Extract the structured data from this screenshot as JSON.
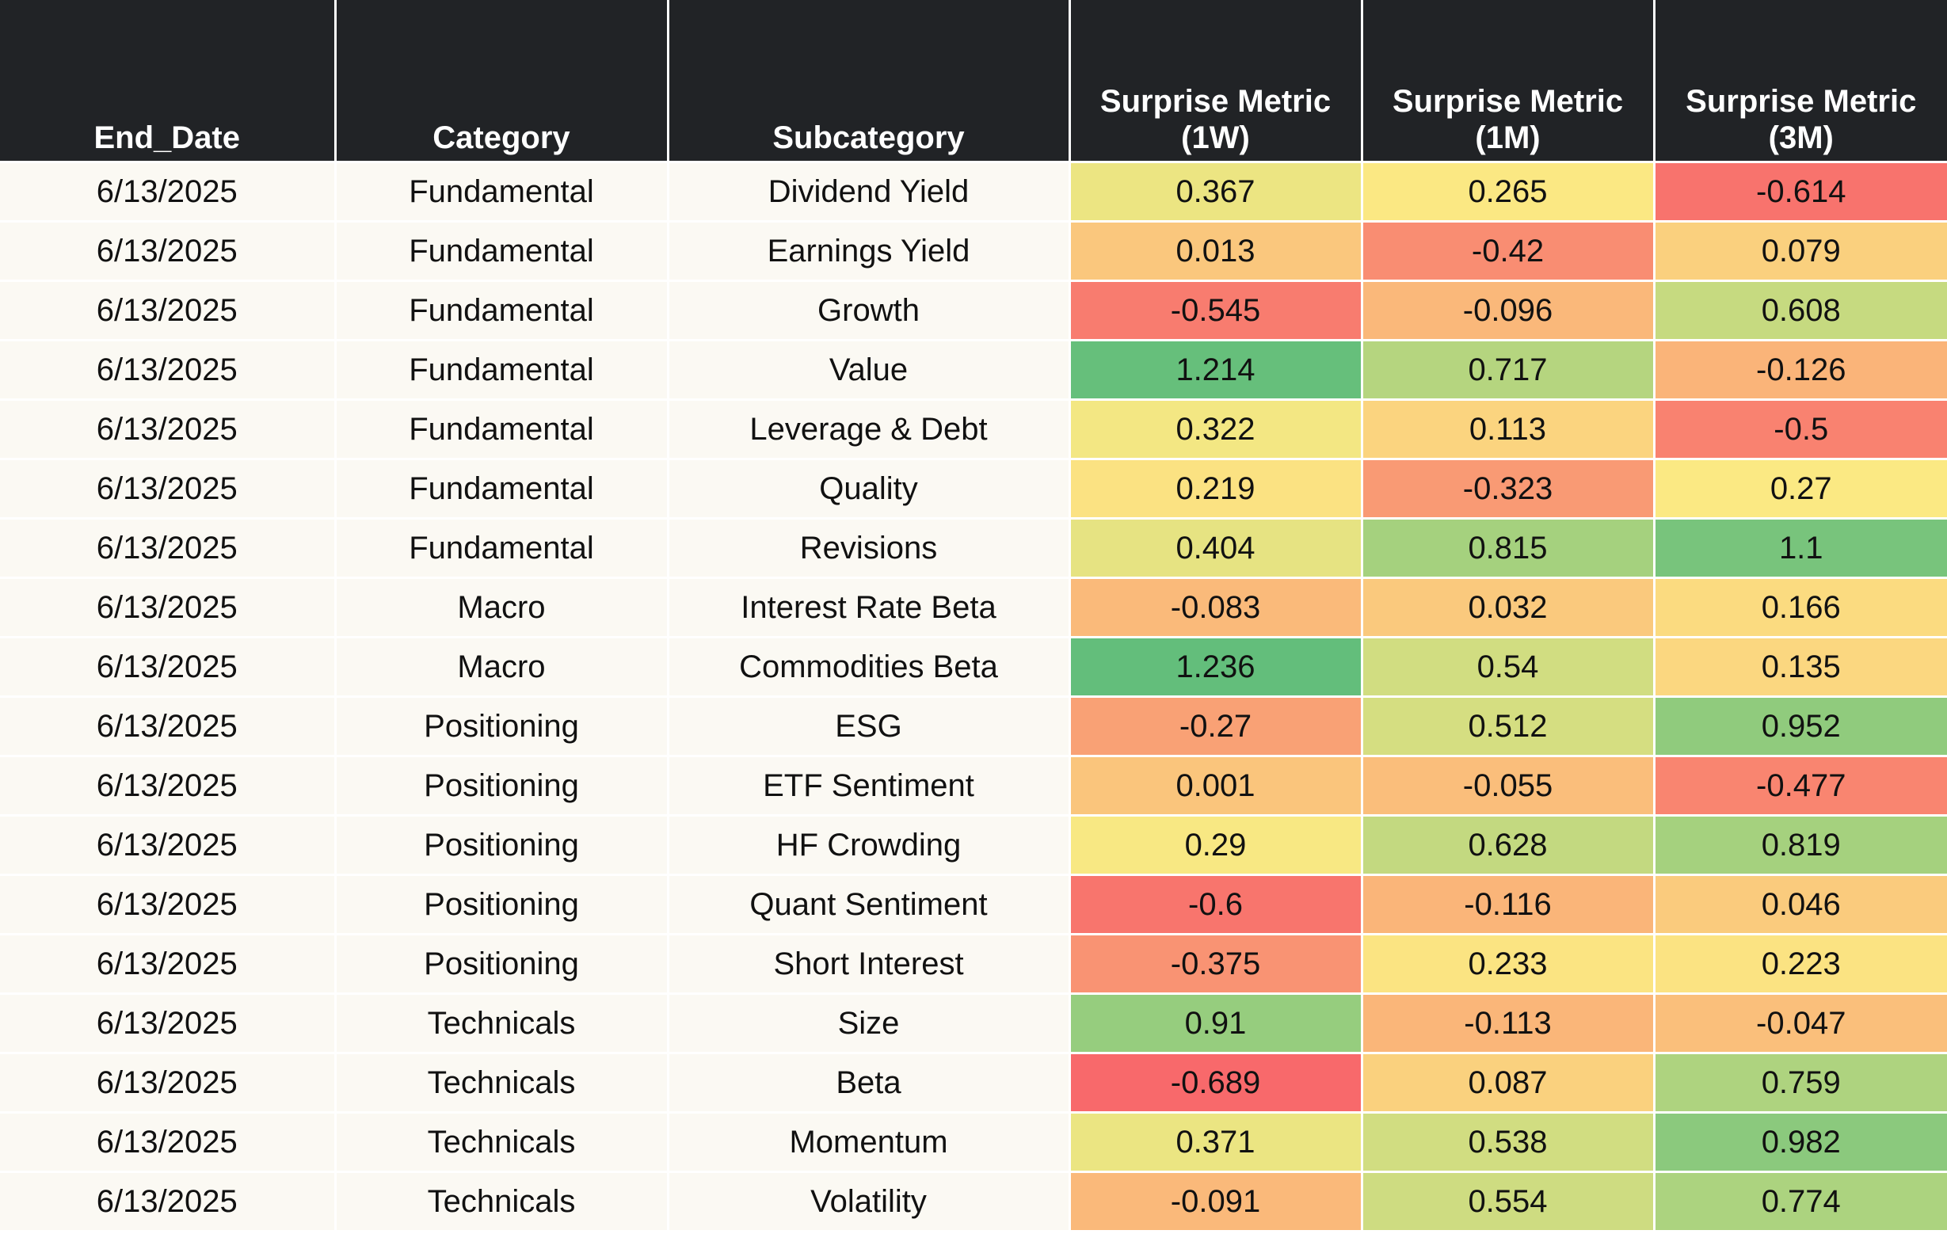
{
  "chart_data": {
    "type": "table",
    "columns": [
      "End_Date",
      "Category",
      "Subcategory",
      "Surprise Metric (1W)",
      "Surprise Metric (1M)",
      "Surprise Metric (3M)"
    ],
    "rows": [
      [
        "6/13/2025",
        "Fundamental",
        "Dividend Yield",
        "0.367",
        "0.265",
        "-0.614"
      ],
      [
        "6/13/2025",
        "Fundamental",
        "Earnings Yield",
        "0.013",
        "-0.42",
        "0.079"
      ],
      [
        "6/13/2025",
        "Fundamental",
        "Growth",
        "-0.545",
        "-0.096",
        "0.608"
      ],
      [
        "6/13/2025",
        "Fundamental",
        "Value",
        "1.214",
        "0.717",
        "-0.126"
      ],
      [
        "6/13/2025",
        "Fundamental",
        "Leverage & Debt",
        "0.322",
        "0.113",
        "-0.5"
      ],
      [
        "6/13/2025",
        "Fundamental",
        "Quality",
        "0.219",
        "-0.323",
        "0.27"
      ],
      [
        "6/13/2025",
        "Fundamental",
        "Revisions",
        "0.404",
        "0.815",
        "1.1"
      ],
      [
        "6/13/2025",
        "Macro",
        "Interest Rate Beta",
        "-0.083",
        "0.032",
        "0.166"
      ],
      [
        "6/13/2025",
        "Macro",
        "Commodities Beta",
        "1.236",
        "0.54",
        "0.135"
      ],
      [
        "6/13/2025",
        "Positioning",
        "ESG",
        "-0.27",
        "0.512",
        "0.952"
      ],
      [
        "6/13/2025",
        "Positioning",
        "ETF Sentiment",
        "0.001",
        "-0.055",
        "-0.477"
      ],
      [
        "6/13/2025",
        "Positioning",
        "HF Crowding",
        "0.29",
        "0.628",
        "0.819"
      ],
      [
        "6/13/2025",
        "Positioning",
        "Quant Sentiment",
        "-0.6",
        "-0.116",
        "0.046"
      ],
      [
        "6/13/2025",
        "Positioning",
        "Short Interest",
        "-0.375",
        "0.233",
        "0.223"
      ],
      [
        "6/13/2025",
        "Technicals",
        "Size",
        "0.91",
        "-0.113",
        "-0.047"
      ],
      [
        "6/13/2025",
        "Technicals",
        "Beta",
        "-0.689",
        "0.087",
        "0.759"
      ],
      [
        "6/13/2025",
        "Technicals",
        "Momentum",
        "0.371",
        "0.538",
        "0.982"
      ],
      [
        "6/13/2025",
        "Technicals",
        "Volatility",
        "-0.091",
        "0.554",
        "0.774"
      ]
    ],
    "color_scale": {
      "min": -0.689,
      "mid": 0.27,
      "max": 1.236,
      "stops": [
        {
          "t": 0.0,
          "color": "#f8696b"
        },
        {
          "t": 0.5,
          "color": "#fbe983"
        },
        {
          "t": 1.0,
          "color": "#63be7b"
        }
      ]
    },
    "header_background": "#212326",
    "body_background": "#fbf9f3"
  }
}
